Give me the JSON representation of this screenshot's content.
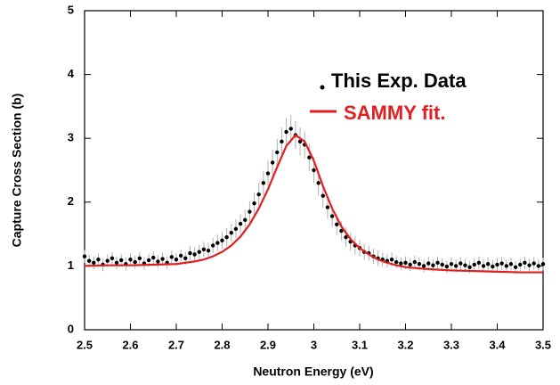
{
  "chart_data": {
    "type": "scatter",
    "xlabel": "Neutron Energy (eV)",
    "ylabel": "Capture Cross Section (b)",
    "xlim": [
      2.5,
      3.5
    ],
    "xticks": [
      {
        "value": 2.5,
        "label": "2.5"
      },
      2.6,
      2.7,
      2.8,
      2.9,
      {
        "value": 3.0,
        "label": "3"
      },
      3.1,
      3.2,
      3.3,
      3.4,
      3.5
    ],
    "ylim": [
      0,
      5
    ],
    "yticks": [
      0,
      1,
      2,
      3,
      4,
      5
    ],
    "series": [
      {
        "name": "This Exp. Data",
        "type": "scatter",
        "color": "#000000",
        "error_color": "#b0b0b0",
        "x": [
          2.5,
          2.51,
          2.52,
          2.53,
          2.54,
          2.55,
          2.56,
          2.57,
          2.58,
          2.59,
          2.6,
          2.61,
          2.62,
          2.63,
          2.64,
          2.65,
          2.66,
          2.67,
          2.68,
          2.69,
          2.7,
          2.71,
          2.72,
          2.73,
          2.74,
          2.75,
          2.76,
          2.77,
          2.78,
          2.79,
          2.8,
          2.81,
          2.82,
          2.83,
          2.84,
          2.85,
          2.86,
          2.87,
          2.88,
          2.89,
          2.9,
          2.91,
          2.92,
          2.93,
          2.94,
          2.95,
          2.96,
          2.97,
          2.98,
          2.99,
          3.0,
          3.01,
          3.02,
          3.03,
          3.04,
          3.05,
          3.06,
          3.07,
          3.08,
          3.09,
          3.1,
          3.11,
          3.12,
          3.13,
          3.14,
          3.15,
          3.16,
          3.17,
          3.18,
          3.19,
          3.2,
          3.21,
          3.22,
          3.23,
          3.24,
          3.25,
          3.26,
          3.27,
          3.28,
          3.29,
          3.3,
          3.31,
          3.32,
          3.33,
          3.34,
          3.35,
          3.36,
          3.37,
          3.38,
          3.39,
          3.4,
          3.41,
          3.42,
          3.43,
          3.44,
          3.45,
          3.46,
          3.47,
          3.48,
          3.49,
          3.5
        ],
        "values": [
          1.15,
          1.08,
          1.05,
          1.1,
          1.02,
          1.08,
          1.12,
          1.05,
          1.09,
          1.03,
          1.1,
          1.06,
          1.12,
          1.04,
          1.09,
          1.13,
          1.07,
          1.11,
          1.05,
          1.14,
          1.1,
          1.16,
          1.12,
          1.2,
          1.18,
          1.22,
          1.26,
          1.24,
          1.32,
          1.36,
          1.4,
          1.45,
          1.52,
          1.58,
          1.66,
          1.72,
          1.85,
          1.98,
          2.12,
          2.3,
          2.45,
          2.62,
          2.78,
          2.95,
          3.1,
          3.15,
          3.05,
          2.95,
          2.9,
          2.7,
          2.5,
          2.3,
          2.1,
          1.92,
          1.78,
          1.65,
          1.55,
          1.45,
          1.38,
          1.32,
          1.28,
          1.22,
          1.2,
          1.15,
          1.12,
          1.1,
          1.08,
          1.1,
          1.06,
          1.04,
          1.05,
          1.02,
          1.06,
          1.03,
          1.0,
          1.04,
          1.01,
          1.05,
          1.02,
          0.99,
          1.03,
          1.0,
          1.04,
          1.01,
          0.98,
          1.02,
          1.05,
          1.0,
          1.03,
          0.99,
          1.02,
          1.04,
          1.0,
          1.03,
          0.98,
          1.02,
          1.05,
          1.01,
          1.04,
          1.0,
          1.03
        ],
        "errors": [
          0.1,
          0.1,
          0.1,
          0.1,
          0.1,
          0.1,
          0.1,
          0.1,
          0.1,
          0.1,
          0.1,
          0.1,
          0.1,
          0.1,
          0.1,
          0.1,
          0.1,
          0.1,
          0.1,
          0.1,
          0.1,
          0.1,
          0.1,
          0.11,
          0.11,
          0.11,
          0.12,
          0.12,
          0.12,
          0.13,
          0.13,
          0.14,
          0.14,
          0.15,
          0.15,
          0.16,
          0.16,
          0.17,
          0.18,
          0.19,
          0.2,
          0.2,
          0.21,
          0.22,
          0.22,
          0.22,
          0.22,
          0.22,
          0.21,
          0.21,
          0.2,
          0.2,
          0.19,
          0.18,
          0.17,
          0.16,
          0.15,
          0.15,
          0.14,
          0.14,
          0.13,
          0.13,
          0.12,
          0.12,
          0.12,
          0.11,
          0.11,
          0.11,
          0.1,
          0.1,
          0.1,
          0.1,
          0.1,
          0.1,
          0.1,
          0.1,
          0.1,
          0.1,
          0.1,
          0.1,
          0.1,
          0.1,
          0.1,
          0.1,
          0.1,
          0.1,
          0.1,
          0.1,
          0.1,
          0.1,
          0.1,
          0.1,
          0.1,
          0.1,
          0.1,
          0.1,
          0.1,
          0.1,
          0.1,
          0.1,
          0.1
        ]
      },
      {
        "name": "SAMMY fit.",
        "type": "line",
        "color": "#e02020",
        "x": [
          2.5,
          2.55,
          2.6,
          2.65,
          2.7,
          2.72,
          2.74,
          2.76,
          2.78,
          2.8,
          2.82,
          2.84,
          2.86,
          2.88,
          2.9,
          2.92,
          2.94,
          2.96,
          2.98,
          3.0,
          3.02,
          3.04,
          3.06,
          3.08,
          3.1,
          3.12,
          3.14,
          3.16,
          3.18,
          3.2,
          3.25,
          3.3,
          3.35,
          3.4,
          3.45,
          3.5
        ],
        "values": [
          1.0,
          1.01,
          1.01,
          1.02,
          1.03,
          1.05,
          1.07,
          1.1,
          1.15,
          1.22,
          1.32,
          1.46,
          1.65,
          1.9,
          2.2,
          2.55,
          2.88,
          3.05,
          2.95,
          2.65,
          2.25,
          1.9,
          1.62,
          1.42,
          1.28,
          1.18,
          1.1,
          1.05,
          1.01,
          0.98,
          0.95,
          0.93,
          0.92,
          0.91,
          0.9,
          0.9
        ]
      }
    ]
  }
}
